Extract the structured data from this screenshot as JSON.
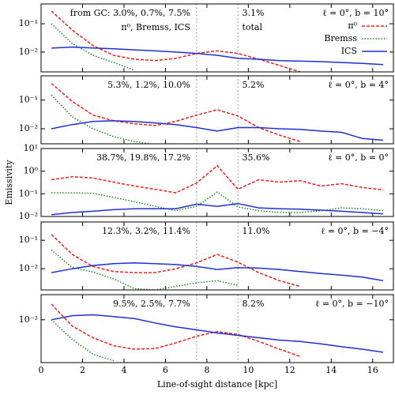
{
  "chart_data": [
    {
      "type": "line",
      "log_y": true,
      "xlim": [
        0,
        17
      ],
      "xticks": [
        0,
        2,
        4,
        6,
        8,
        10,
        12,
        14,
        16
      ],
      "ylim": [
        0.002,
        0.5
      ],
      "yticks": [
        {
          "value": 0.01,
          "label": "10⁻²"
        },
        {
          "value": 0.1,
          "label": "10⁻¹"
        }
      ],
      "vlines": [
        7.5,
        9.5
      ],
      "legend": "upper right",
      "annotations": [
        "from GC: 3.0%, 0.7%, 7.5%",
        "3.1%",
        "ℓ = 0°, b = 10°",
        "π⁰, Bremss, ICS",
        "total"
      ],
      "x": [
        0.5,
        1.5,
        2.5,
        3.5,
        4.5,
        5.5,
        6.5,
        7.5,
        8.5,
        9.5,
        10.5,
        11.5,
        12.5,
        13.5,
        14.5,
        15.5,
        16.5
      ],
      "series": [
        {
          "name": "π⁰",
          "color": "#e8211d",
          "style": "dashed",
          "values": [
            0.28,
            0.06,
            0.017,
            0.0077,
            0.0056,
            0.005,
            0.006,
            0.009,
            0.011,
            0.009,
            0.0056,
            0.0034,
            0.002,
            null,
            null,
            null,
            null
          ]
        },
        {
          "name": "Bremss",
          "color": "#1f8a1f",
          "style": "dotted",
          "values": [
            0.1,
            0.02,
            0.0077,
            0.0043,
            0.0023,
            null,
            null,
            null,
            null,
            null,
            null,
            null,
            null,
            null,
            null,
            null,
            null
          ]
        },
        {
          "name": "ICS",
          "color": "#1f2fd0",
          "style": "solid",
          "values": [
            0.0138,
            0.015,
            0.014,
            0.013,
            0.012,
            0.011,
            0.01,
            0.009,
            0.0077,
            0.006,
            0.0056,
            0.005,
            0.0048,
            0.0046,
            0.0043,
            0.004,
            0.0036
          ]
        }
      ]
    },
    {
      "type": "line",
      "log_y": true,
      "xlim": [
        0,
        17
      ],
      "xticks": [
        0,
        2,
        4,
        6,
        8,
        10,
        12,
        14,
        16
      ],
      "ylim": [
        0.003,
        0.7
      ],
      "yticks": [
        {
          "value": 0.01,
          "label": "10⁻²"
        },
        {
          "value": 0.1,
          "label": "10⁻¹"
        }
      ],
      "vlines": [
        7.5,
        9.5
      ],
      "annotations": [
        "5.3%, 1.2%, 10.0%",
        "5.2%",
        "ℓ = 0°, b = 4°"
      ],
      "x": [
        0.5,
        1.5,
        2.5,
        3.5,
        4.5,
        5.5,
        6.5,
        7.5,
        8.5,
        9.5,
        10.5,
        11.5,
        12.5,
        13.5,
        14.5,
        15.5,
        16.5
      ],
      "series": [
        {
          "name": "π⁰",
          "color": "#e8211d",
          "style": "dashed",
          "values": [
            0.38,
            0.09,
            0.03,
            0.019,
            0.015,
            0.013,
            0.018,
            0.03,
            0.046,
            0.028,
            0.011,
            0.006,
            0.0036,
            null,
            null,
            null,
            null
          ]
        },
        {
          "name": "Bremss",
          "color": "#1f8a1f",
          "style": "dotted",
          "values": [
            0.15,
            0.026,
            0.01,
            0.0053,
            0.0036,
            0.0028,
            null,
            null,
            null,
            null,
            null,
            null,
            null,
            null,
            null,
            null,
            null
          ]
        },
        {
          "name": "ICS",
          "color": "#1f2fd0",
          "style": "solid",
          "values": [
            0.01,
            0.014,
            0.018,
            0.019,
            0.018,
            0.016,
            0.014,
            0.011,
            0.0083,
            0.011,
            0.011,
            0.01,
            0.0095,
            0.0083,
            0.0075,
            0.0046,
            0.004
          ]
        }
      ]
    },
    {
      "type": "line",
      "log_y": true,
      "xlim": [
        0,
        17
      ],
      "xticks": [
        0,
        2,
        4,
        6,
        8,
        10,
        12,
        14,
        16
      ],
      "ylim": [
        0.01,
        10
      ],
      "yticks": [
        {
          "value": 0.01,
          "label": "10⁻²"
        },
        {
          "value": 0.1,
          "label": "10⁻¹"
        },
        {
          "value": 1,
          "label": "10⁰"
        },
        {
          "value": 10,
          "label": "10¹"
        }
      ],
      "vlines": [
        7.5,
        9.5
      ],
      "ylabel": "Emissivity",
      "annotations": [
        "38.7%, 19.8%, 17.2%",
        "35.6%",
        "ℓ = 0°, b = 0°"
      ],
      "x": [
        0.5,
        1.5,
        2.5,
        3.5,
        4.5,
        5.5,
        6.5,
        7.5,
        8.5,
        9.5,
        10.5,
        11.5,
        12.5,
        13.5,
        14.5,
        15.5,
        16.5
      ],
      "series": [
        {
          "name": "π⁰",
          "color": "#e8211d",
          "style": "dashed",
          "values": [
            0.42,
            0.57,
            0.5,
            0.33,
            0.22,
            0.16,
            0.11,
            0.3,
            1.75,
            0.16,
            0.42,
            0.33,
            0.38,
            0.22,
            0.28,
            0.19,
            0.15
          ]
        },
        {
          "name": "Bremss",
          "color": "#1f8a1f",
          "style": "dotted",
          "values": [
            0.11,
            0.11,
            0.105,
            0.07,
            0.045,
            0.028,
            0.018,
            0.028,
            0.12,
            0.026,
            0.018,
            0.015,
            0.015,
            0.018,
            0.024,
            0.022,
            0.018
          ]
        },
        {
          "name": "ICS",
          "color": "#1f2fd0",
          "style": "solid",
          "values": [
            0.012,
            0.015,
            0.017,
            0.02,
            0.022,
            0.022,
            0.022,
            0.035,
            0.028,
            0.037,
            0.024,
            0.022,
            0.021,
            0.019,
            0.017,
            0.015,
            0.013
          ]
        }
      ]
    },
    {
      "type": "line",
      "log_y": true,
      "xlim": [
        0,
        17
      ],
      "xticks": [
        0,
        2,
        4,
        6,
        8,
        10,
        12,
        14,
        16
      ],
      "ylim": [
        0.0018,
        0.44
      ],
      "yticks": [
        {
          "value": 0.01,
          "label": "10⁻²"
        },
        {
          "value": 0.1,
          "label": "10⁻¹"
        }
      ],
      "vlines": [
        7.5,
        9.5
      ],
      "annotations": [
        "12.3%, 3.2%, 11.4%",
        "11.0%",
        "ℓ = 0°, b = −4°"
      ],
      "x": [
        0.5,
        1.5,
        2.5,
        3.5,
        4.5,
        5.5,
        6.5,
        7.5,
        8.5,
        9.5,
        10.5,
        11.5,
        12.5,
        13.5,
        14.5,
        15.5,
        16.5
      ],
      "series": [
        {
          "name": "π⁰",
          "color": "#e8211d",
          "style": "dashed",
          "values": [
            0.16,
            0.032,
            0.012,
            0.008,
            0.0073,
            0.0073,
            0.01,
            0.016,
            0.032,
            0.017,
            0.0073,
            0.0038,
            0.0024,
            null,
            null,
            null,
            null
          ]
        },
        {
          "name": "Bremss",
          "color": "#1f8a1f",
          "style": "dotted",
          "values": [
            0.046,
            0.011,
            0.0077,
            0.0044,
            0.002,
            0.0018,
            0.0024,
            0.0032,
            0.0038,
            0.0026,
            null,
            null,
            null,
            null,
            null,
            null,
            null
          ]
        },
        {
          "name": "ICS",
          "color": "#1f2fd0",
          "style": "solid",
          "values": [
            0.0073,
            0.01,
            0.013,
            0.015,
            0.016,
            0.015,
            0.014,
            0.012,
            0.0094,
            0.011,
            0.0105,
            0.0094,
            0.008,
            0.0068,
            0.006,
            0.0051,
            0.0038
          ]
        }
      ]
    },
    {
      "type": "line",
      "log_y": true,
      "xlim": [
        0,
        17
      ],
      "xticks": [
        0,
        2,
        4,
        6,
        8,
        10,
        12,
        14,
        16
      ],
      "ylim": [
        0.0003,
        0.078
      ],
      "yticks": [
        {
          "value": 0.01,
          "label": "10⁻²"
        }
      ],
      "vlines": [
        7.5,
        9.5
      ],
      "xlabel": "Line-of-sight distance [kpc]",
      "annotations": [
        "9.5%, 2.5%, 7.7%",
        "8.2%",
        "ℓ = 0°, b = −10°"
      ],
      "x": [
        0.5,
        1.5,
        2.5,
        3.5,
        4.5,
        5.5,
        6.5,
        7.5,
        8.5,
        9.5,
        10.5,
        11.5,
        12.5,
        13.5,
        14.5,
        15.5,
        16.5
      ],
      "series": [
        {
          "name": "π⁰",
          "color": "#e8211d",
          "style": "dashed",
          "values": [
            0.036,
            0.006,
            0.0023,
            0.0012,
            0.0009,
            0.00095,
            0.0015,
            0.0026,
            0.0038,
            0.003,
            0.0017,
            0.0009,
            0.0005,
            null,
            null,
            null,
            null
          ]
        },
        {
          "name": "Bremss",
          "color": "#1f8a1f",
          "style": "dotted",
          "values": [
            0.01,
            0.002,
            0.0006,
            0.00035,
            null,
            null,
            null,
            null,
            null,
            null,
            null,
            null,
            null,
            null,
            null,
            null,
            null
          ]
        },
        {
          "name": "ICS",
          "color": "#1f2fd0",
          "style": "solid",
          "values": [
            0.01,
            0.014,
            0.015,
            0.013,
            0.011,
            0.0077,
            0.0056,
            0.0044,
            0.0034,
            0.0028,
            0.0023,
            0.0019,
            0.0017,
            0.0014,
            0.0011,
            0.0009,
            0.0007
          ]
        }
      ]
    }
  ]
}
